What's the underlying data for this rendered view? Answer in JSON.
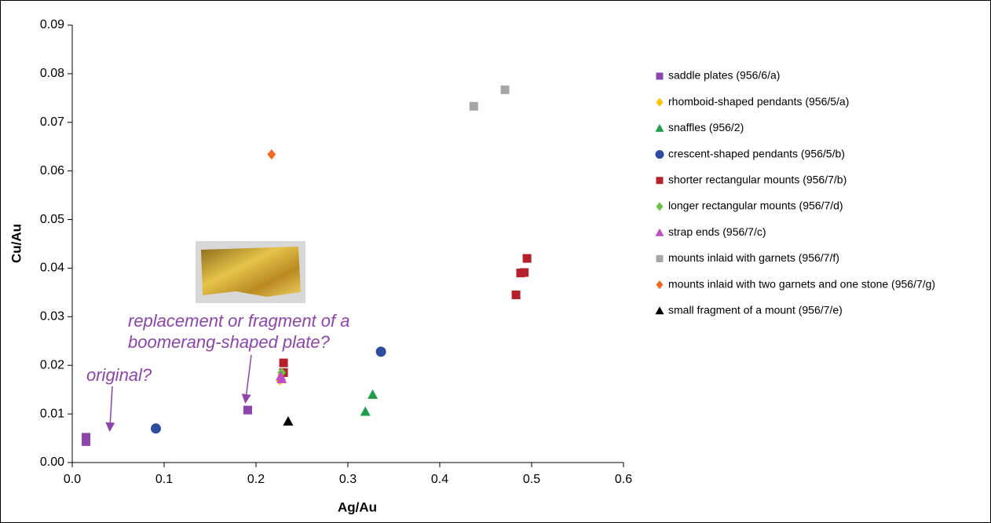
{
  "chart_data": {
    "type": "scatter",
    "x_label": "Ag/Au",
    "y_label": "Cu/Au",
    "xlim": [
      0,
      0.6
    ],
    "ylim": [
      0,
      0.09
    ],
    "xticks": [
      {
        "value": 0,
        "label": "0.0"
      },
      0.1,
      0.2,
      0.3,
      0.4,
      0.5,
      0.6
    ],
    "yticks": [
      {
        "value": 0,
        "label": "0.00"
      },
      0.01,
      0.02,
      0.03,
      0.04,
      0.05,
      0.06,
      0.07,
      0.08,
      0.09
    ],
    "grid": false,
    "legend": "right",
    "series": [
      {
        "name": "saddle plates (956/6/a)",
        "color": "#8e44ad",
        "marker": "square",
        "x": [
          0.015,
          0.015,
          0.191
        ],
        "values": [
          0.0043,
          0.0052,
          0.0108
        ]
      },
      {
        "name": "rhomboid-shaped pendants (956/5/a)",
        "color": "#ffc000",
        "marker": "diamond",
        "x": [
          0.226,
          0.228
        ],
        "values": [
          0.0169,
          0.018
        ]
      },
      {
        "name": "snaffles (956/2)",
        "color": "#1e9e4a",
        "marker": "triangle",
        "x": [
          0.319,
          0.327
        ],
        "values": [
          0.0105,
          0.014
        ]
      },
      {
        "name": "crescent-shaped pendants (956/5/b)",
        "color": "#2e4da0",
        "marker": "circle",
        "x": [
          0.091,
          0.336
        ],
        "values": [
          0.007,
          0.0228
        ]
      },
      {
        "name": "shorter rectangular mounts (956/7/b)",
        "color": "#b5202a",
        "marker": "square",
        "x": [
          0.23,
          0.23,
          0.483,
          0.488,
          0.492,
          0.495
        ],
        "values": [
          0.0205,
          0.0185,
          0.0345,
          0.039,
          0.0391,
          0.042
        ]
      },
      {
        "name": "longer rectangular mounts (956/7/d)",
        "color": "#6cc04a",
        "marker": "diamond",
        "x": [
          0.228
        ],
        "values": [
          0.0185
        ]
      },
      {
        "name": "strap ends (956/7/c)",
        "color": "#c050c0",
        "marker": "triangle",
        "x": [
          0.228,
          0.227
        ],
        "values": [
          0.0172,
          0.0178
        ]
      },
      {
        "name": "mounts inlaid with garnets (956/7/f)",
        "color": "#a6a6a6",
        "marker": "square",
        "x": [
          0.437,
          0.471
        ],
        "values": [
          0.0733,
          0.0767
        ]
      },
      {
        "name": "mounts inlaid with two garnets and one stone (956/7/g)",
        "color": "#f26b21",
        "marker": "diamond",
        "x": [
          0.217
        ],
        "values": [
          0.0634
        ]
      },
      {
        "name": "small fragment of a mount (956/7/e)",
        "color": "#000000",
        "marker": "triangle",
        "x": [
          0.235
        ],
        "values": [
          0.0085
        ]
      }
    ],
    "annotations": [
      "original?",
      "replacement or fragment of a",
      "boomerang-shaped plate?"
    ]
  }
}
